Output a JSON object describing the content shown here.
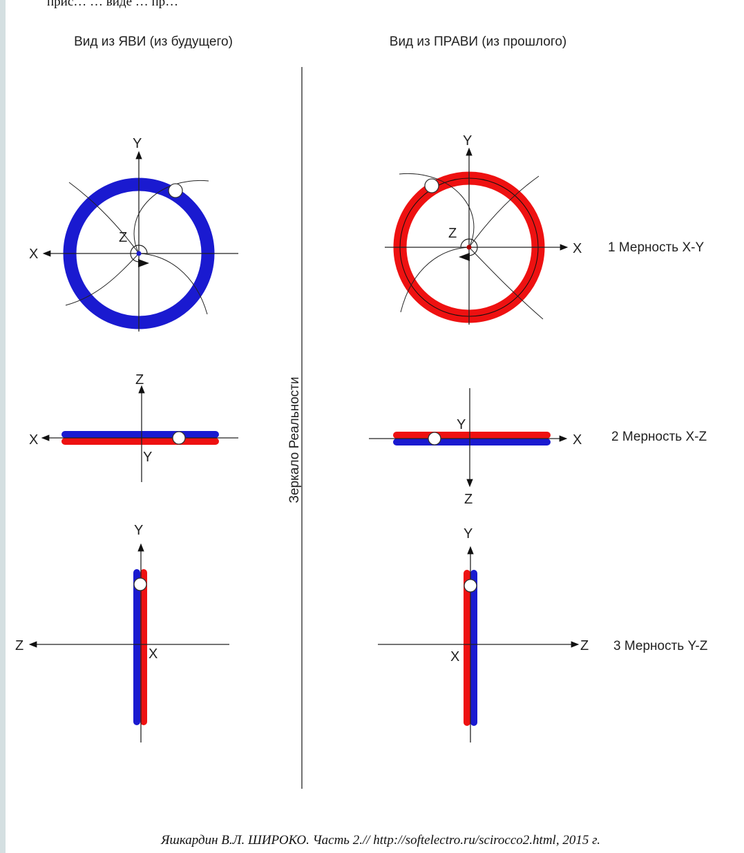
{
  "top_fragment": "прис…  … виде  … пр…",
  "titles": {
    "left": "Вид из ЯВИ (из будущего)",
    "right": "Вид из ПРАВИ (из прошлого)",
    "mirror": "Зеркало Реальности"
  },
  "rows": {
    "row1": "1 Мерность X-Y",
    "row2": "2 Мерность X-Z",
    "row3": "3 Мерность Y-Z"
  },
  "axes": {
    "x": "X",
    "y": "Y",
    "z": "Z"
  },
  "citation": "Яшкардин В.Л. ШИРОКО. Часть 2.// http://softelectro.ru/scirocco2.html, 2015 г.",
  "colors": {
    "blue": "#1a1ad0",
    "red": "#ee1111",
    "background": "#d4dfe1"
  }
}
